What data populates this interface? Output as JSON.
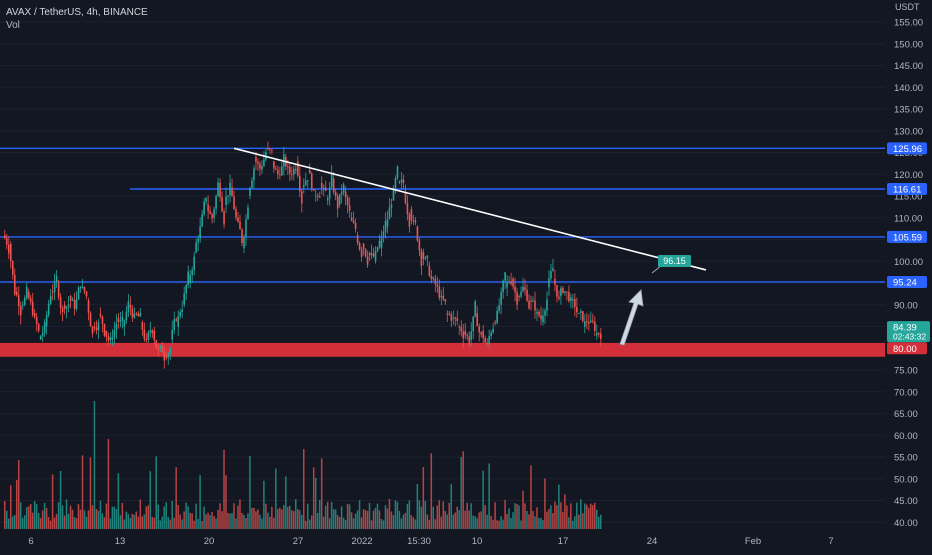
{
  "header": {
    "symbol_line": "AVAX / TetherUS, 4h, BINANCE",
    "volume_label": "Vol"
  },
  "currency": "USDT",
  "colors": {
    "background": "#131722",
    "up": "#26a69a",
    "down": "#ef5350",
    "level_line": "#2962ff",
    "support_zone": "#d32f3a",
    "trendline": "#ffffff",
    "price_tag": "#26a69a",
    "axis_text": "#b2b5be"
  },
  "chart_data": {
    "type": "candlestick",
    "y_axis": {
      "min": 38,
      "max": 158,
      "ticks": [
        "155.00",
        "150.00",
        "145.00",
        "140.00",
        "135.00",
        "130.00",
        "125.00",
        "120.00",
        "115.00",
        "110.00",
        "105.00",
        "100.00",
        "95.00",
        "90.00",
        "85.00",
        "80.00",
        "75.00",
        "70.00",
        "65.00",
        "60.00",
        "55.00",
        "50.00",
        "45.00",
        "40.00"
      ]
    },
    "x_axis": {
      "labels": [
        "6",
        "13",
        "20",
        "27",
        "2022",
        "15:30",
        "10",
        "17",
        "24",
        "Feb",
        "7"
      ]
    },
    "price_levels": [
      {
        "label": "125.96",
        "value": 125.96
      },
      {
        "label": "116.61",
        "value": 116.61
      },
      {
        "label": "105.59",
        "value": 105.59
      },
      {
        "label": "95.24",
        "value": 95.24
      }
    ],
    "support_zone": {
      "low": 78.5,
      "high": 81.0
    },
    "trendline": {
      "start": 125.96,
      "end": 98.0
    },
    "arrow_target_label": "96.15",
    "current_price": {
      "label": "84.39",
      "timer": "02:43:32",
      "value": 84.39
    },
    "zone_label": "80.00",
    "close_path": [
      104,
      93,
      90,
      93,
      88,
      82,
      85,
      93,
      95,
      90,
      92,
      89,
      94,
      91,
      85,
      88,
      84,
      82,
      87,
      85,
      90,
      88,
      86,
      82,
      84,
      80,
      78,
      82,
      85,
      90,
      95,
      102,
      108,
      113,
      110,
      118,
      113,
      117,
      110,
      103,
      115,
      124,
      121,
      126,
      123,
      120,
      124,
      120,
      123,
      117,
      121,
      115,
      118,
      114,
      119,
      113,
      116,
      110,
      106,
      104,
      102,
      100,
      103,
      108,
      114,
      118,
      116,
      112,
      108,
      102,
      99,
      96,
      92,
      88,
      87,
      85,
      84,
      82,
      88,
      84,
      81,
      86,
      90,
      94,
      96,
      92,
      94,
      91,
      88,
      86,
      94,
      96,
      92,
      93,
      91,
      88,
      85,
      86,
      83,
      84
    ]
  }
}
